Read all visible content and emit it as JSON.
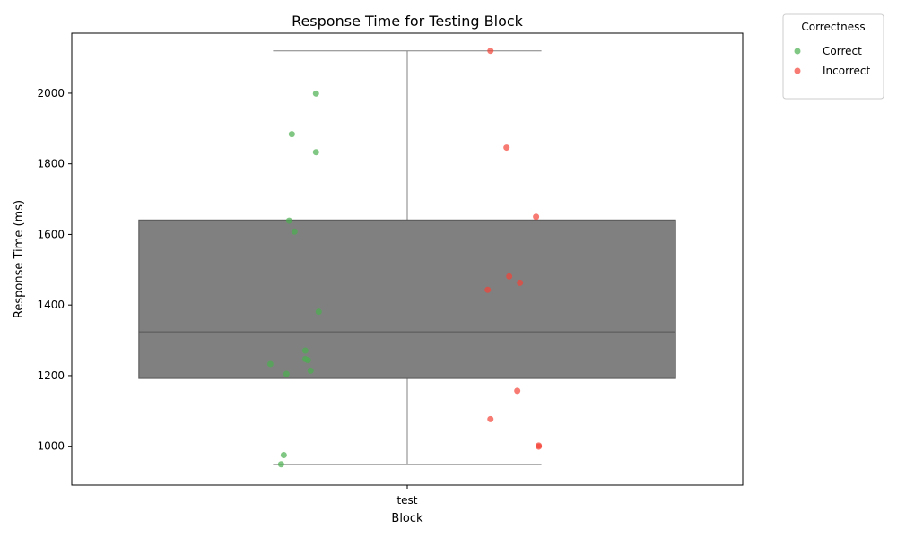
{
  "chart_data": {
    "type": "box",
    "title": "Response Time for Testing Block",
    "xlabel": "Block",
    "ylabel": "Response Time (ms)",
    "categories": [
      "test"
    ],
    "ylim": [
      890,
      2170
    ],
    "yticks": [
      1000,
      1200,
      1400,
      1600,
      1800,
      2000
    ],
    "grid": false,
    "box": {
      "category": "test",
      "q1": 1192,
      "median": 1324,
      "q3": 1641,
      "whisker_low": 948,
      "whisker_high": 2120,
      "color": "#808080"
    },
    "legend": {
      "title": "Correctness",
      "placement": "outside-right",
      "entries": [
        {
          "label": "Correct",
          "color": "#4caf50"
        },
        {
          "label": "Incorrect",
          "color": "#f44336"
        }
      ]
    },
    "series": [
      {
        "name": "Correct",
        "color": "#4caf50",
        "points": [
          {
            "x": -0.34,
            "y": 1999
          },
          {
            "x": -0.43,
            "y": 1884
          },
          {
            "x": -0.34,
            "y": 1833
          },
          {
            "x": -0.44,
            "y": 1639
          },
          {
            "x": -0.42,
            "y": 1608
          },
          {
            "x": -0.33,
            "y": 1381
          },
          {
            "x": -0.38,
            "y": 1271
          },
          {
            "x": -0.38,
            "y": 1247
          },
          {
            "x": -0.37,
            "y": 1244
          },
          {
            "x": -0.51,
            "y": 1233
          },
          {
            "x": -0.36,
            "y": 1214
          },
          {
            "x": -0.45,
            "y": 1205
          },
          {
            "x": -0.46,
            "y": 975
          },
          {
            "x": -0.47,
            "y": 949
          }
        ]
      },
      {
        "name": "Incorrect",
        "color": "#f44336",
        "points": [
          {
            "x": 0.31,
            "y": 2120
          },
          {
            "x": 0.37,
            "y": 1846
          },
          {
            "x": 0.48,
            "y": 1650
          },
          {
            "x": 0.38,
            "y": 1481
          },
          {
            "x": 0.42,
            "y": 1463
          },
          {
            "x": 0.3,
            "y": 1443
          },
          {
            "x": 0.41,
            "y": 1157
          },
          {
            "x": 0.31,
            "y": 1077
          },
          {
            "x": 0.49,
            "y": 1002
          },
          {
            "x": 0.49,
            "y": 999
          }
        ]
      }
    ]
  }
}
